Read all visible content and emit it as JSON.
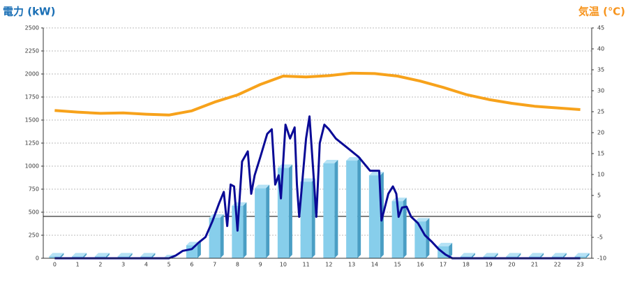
{
  "chart_data": {
    "type": "combo",
    "ylabel": "電力 (kW)",
    "y2label": "気温 (℃)",
    "categories": [
      "0",
      "1",
      "2",
      "3",
      "4",
      "5",
      "6",
      "7",
      "8",
      "9",
      "10",
      "11",
      "12",
      "13",
      "14",
      "15",
      "16",
      "17",
      "18",
      "19",
      "20",
      "21",
      "22",
      "23"
    ],
    "ylim": [
      0,
      2500
    ],
    "yticks": [
      0,
      250,
      500,
      750,
      1000,
      1250,
      1500,
      1750,
      2000,
      2250,
      2500
    ],
    "y2lim": [
      -10,
      45
    ],
    "y2ticks": [
      -10,
      -5,
      0,
      5,
      10,
      15,
      20,
      25,
      30,
      35,
      40,
      45
    ],
    "grid": true,
    "zero_line_y2": 0,
    "series": [
      {
        "type": "bar",
        "color": "#87ceeb",
        "values": [
          20,
          20,
          20,
          20,
          20,
          0,
          140,
          440,
          570,
          760,
          980,
          830,
          1030,
          1060,
          900,
          620,
          400,
          130,
          20,
          20,
          20,
          20,
          20,
          20
        ]
      },
      {
        "type": "line",
        "color": "#0a0a96",
        "x": [
          0,
          5,
          5.3,
          5.6,
          6,
          6.3,
          6.6,
          6.9,
          7.2,
          7.4,
          7.55,
          7.7,
          7.85,
          8.0,
          8.2,
          8.45,
          8.6,
          8.75,
          9.0,
          9.3,
          9.5,
          9.65,
          9.8,
          9.9,
          10.1,
          10.3,
          10.5,
          10.6,
          10.7,
          11.0,
          11.15,
          11.3,
          11.45,
          11.6,
          11.8,
          12.0,
          12.3,
          12.8,
          13.3,
          13.8,
          14.2,
          14.3,
          14.6,
          14.8,
          14.95,
          15.05,
          15.2,
          15.4,
          15.6,
          15.9,
          16.2,
          16.5,
          16.8,
          17.1,
          17.4,
          23
        ],
        "values": [
          0,
          0,
          30,
          80,
          100,
          170,
          230,
          400,
          600,
          720,
          350,
          800,
          780,
          300,
          1050,
          1160,
          700,
          900,
          1100,
          1350,
          1400,
          800,
          900,
          650,
          1450,
          1300,
          1420,
          800,
          450,
          1300,
          1540,
          1000,
          450,
          1250,
          1450,
          1400,
          1300,
          1200,
          1100,
          950,
          950,
          410,
          700,
          780,
          700,
          450,
          550,
          560,
          450,
          380,
          250,
          180,
          100,
          40,
          0,
          0
        ]
      },
      {
        "type": "line",
        "axis": "y2",
        "color": "#f7a21b",
        "values": [
          25.3,
          24.9,
          24.6,
          24.7,
          24.4,
          24.2,
          25.2,
          27.3,
          29,
          31.5,
          33.5,
          33.3,
          33.6,
          34.2,
          34.1,
          33.5,
          32.3,
          30.8,
          29.1,
          27.9,
          27,
          26.3,
          25.9,
          25.5
        ]
      }
    ]
  }
}
